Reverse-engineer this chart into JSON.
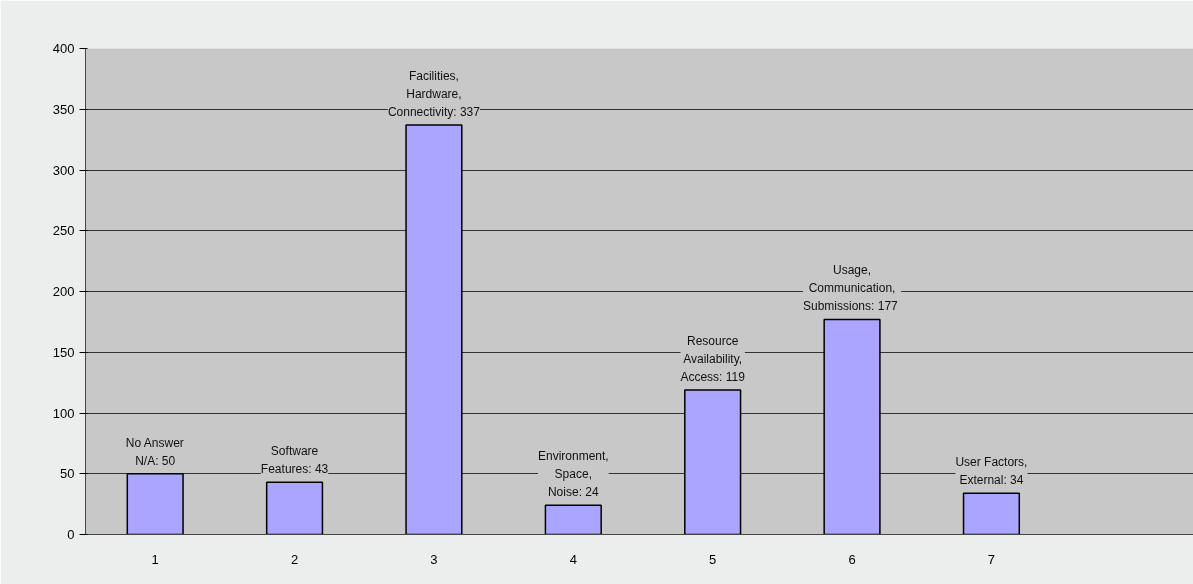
{
  "chart_data": {
    "type": "bar",
    "categories": [
      "1",
      "2",
      "3",
      "4",
      "5",
      "6",
      "7",
      null
    ],
    "values": [
      50,
      43,
      337,
      24,
      119,
      177,
      34,
      null
    ],
    "value_labels": [
      "No Answer\nN/A: 50",
      "Software\nFeatures: 43",
      "Facilities,\nHardware,\nConnectivity: 337",
      "Environment,\nSpace,\nNoise: 24",
      "Resource\nAvailability,\nAccess: 119",
      "Usage,\nCommunication,\nSubmissions:  177",
      "User Factors,\nExternal: 34",
      null
    ],
    "color": "#aaa6ff",
    "ylim": [
      0,
      400
    ],
    "yticks": [
      0,
      50,
      100,
      150,
      200,
      250,
      300,
      350,
      400
    ],
    "grid": "y"
  }
}
